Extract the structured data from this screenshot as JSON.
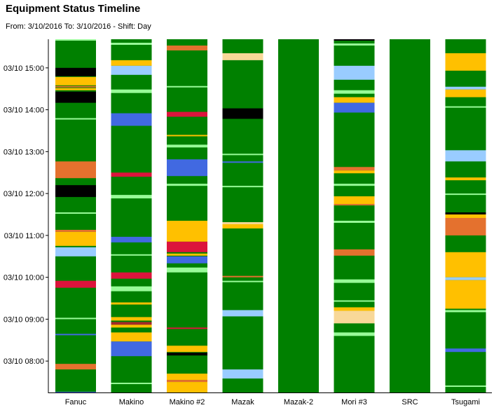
{
  "header": {
    "title": "Equipment Status Timeline",
    "subtitle": "From: 3/10/2016 To: 3/10/2016 - Shift: Day"
  },
  "colors": {
    "running": "#008000",
    "light_green": "#98FB98",
    "gold": "#FFC000",
    "light_blue": "#99CCFF",
    "blue": "#4169E1",
    "orange": "#E4712E",
    "red": "#DC143C",
    "black": "#000000",
    "tan": "#F8D898",
    "dark_red": "#A52A2A",
    "axis": "#000000"
  },
  "chart_data": {
    "type": "timeline",
    "time_axis": {
      "start": "07:15",
      "end": "15:41",
      "tick_labels": [
        "03/10 08:00",
        "03/10 09:00",
        "03/10 10:00",
        "03/10 11:00",
        "03/10 12:00",
        "03/10 13:00",
        "03/10 14:00",
        "03/10 15:00"
      ],
      "tick_times": [
        "08:00",
        "09:00",
        "10:00",
        "11:00",
        "12:00",
        "13:00",
        "14:00",
        "15:00"
      ]
    },
    "base_status": "running",
    "machines": [
      {
        "name": "Fanuc",
        "events": [
          [
            "15:41",
            "15:40",
            "light_green"
          ],
          [
            "15:00",
            "14:48",
            "black"
          ],
          [
            "14:47",
            "14:35",
            "gold"
          ],
          [
            "14:34",
            "14:32",
            "orange"
          ],
          [
            "14:31",
            "14:28",
            "gold"
          ],
          [
            "14:26",
            "14:10",
            "black"
          ],
          [
            "13:48",
            "13:46",
            "light_green"
          ],
          [
            "12:46",
            "12:22",
            "orange"
          ],
          [
            "12:12",
            "11:55",
            "black"
          ],
          [
            "11:33",
            "11:31",
            "light_green"
          ],
          [
            "11:08",
            "11:05",
            "orange"
          ],
          [
            "11:05",
            "10:45",
            "gold"
          ],
          [
            "10:43",
            "10:30",
            "light_blue"
          ],
          [
            "09:55",
            "09:45",
            "red"
          ],
          [
            "09:02",
            "09:01",
            "light_green"
          ],
          [
            "08:39",
            "08:38",
            "blue"
          ],
          [
            "07:56",
            "07:48",
            "orange"
          ],
          [
            "07:16",
            "07:15",
            "blue"
          ]
        ]
      },
      {
        "name": "Makino",
        "events": [
          [
            "15:36",
            "15:33",
            "light_green"
          ],
          [
            "15:11",
            "15:03",
            "gold"
          ],
          [
            "15:03",
            "14:50",
            "light_blue"
          ],
          [
            "14:29",
            "14:24",
            "light_green"
          ],
          [
            "13:55",
            "13:37",
            "blue"
          ],
          [
            "12:30",
            "12:24",
            "red"
          ],
          [
            "11:58",
            "11:53",
            "light_green"
          ],
          [
            "10:58",
            "10:50",
            "blue"
          ],
          [
            "10:33",
            "10:31",
            "light_green"
          ],
          [
            "10:07",
            "09:58",
            "red"
          ],
          [
            "09:47",
            "09:40",
            "light_green"
          ],
          [
            "09:24",
            "09:21",
            "gold"
          ],
          [
            "09:03",
            "08:58",
            "gold"
          ],
          [
            "08:56",
            "08:52",
            "dark_red"
          ],
          [
            "08:52",
            "08:48",
            "gold"
          ],
          [
            "08:41",
            "08:28",
            "gold"
          ],
          [
            "08:28",
            "08:07",
            "blue"
          ],
          [
            "07:29",
            "07:27",
            "light_green"
          ]
        ]
      },
      {
        "name": "Makino #2",
        "events": [
          [
            "15:32",
            "15:25",
            "orange"
          ],
          [
            "14:34",
            "14:32",
            "light_green"
          ],
          [
            "13:57",
            "13:50",
            "red"
          ],
          [
            "13:24",
            "13:22",
            "gold"
          ],
          [
            "13:10",
            "13:06",
            "light_green"
          ],
          [
            "12:49",
            "12:25",
            "blue"
          ],
          [
            "12:14",
            "12:11",
            "light_green"
          ],
          [
            "11:21",
            "10:51",
            "gold"
          ],
          [
            "10:51",
            "10:36",
            "red"
          ],
          [
            "10:34",
            "10:31",
            "gold"
          ],
          [
            "10:30",
            "10:20",
            "blue"
          ],
          [
            "10:14",
            "10:07",
            "light_green"
          ],
          [
            "08:48",
            "08:47",
            "red"
          ],
          [
            "08:22",
            "08:13",
            "gold"
          ],
          [
            "08:12",
            "08:08",
            "black"
          ],
          [
            "07:42",
            "07:33",
            "gold"
          ],
          [
            "07:33",
            "07:30",
            "orange"
          ],
          [
            "07:30",
            "07:15",
            "gold"
          ]
        ]
      },
      {
        "name": "Mazak",
        "events": [
          [
            "15:21",
            "15:11",
            "tan"
          ],
          [
            "14:02",
            "13:47",
            "black"
          ],
          [
            "12:57",
            "12:55",
            "light_green"
          ],
          [
            "12:46",
            "12:44",
            "blue"
          ],
          [
            "12:11",
            "12:09",
            "light_green"
          ],
          [
            "11:19",
            "11:16",
            "tan"
          ],
          [
            "11:16",
            "11:10",
            "gold"
          ],
          [
            "10:02",
            "10:00",
            "orange"
          ],
          [
            "09:55",
            "09:53",
            "light_green"
          ],
          [
            "09:13",
            "09:04",
            "light_blue"
          ],
          [
            "07:48",
            "07:35",
            "light_blue"
          ]
        ]
      },
      {
        "name": "Mazak-2",
        "events": []
      },
      {
        "name": "Mori #3",
        "events": [
          [
            "15:41",
            "15:40",
            "black"
          ],
          [
            "15:35",
            "15:32",
            "light_green"
          ],
          [
            "15:03",
            "14:43",
            "light_blue"
          ],
          [
            "14:28",
            "14:23",
            "light_green"
          ],
          [
            "14:18",
            "14:10",
            "gold"
          ],
          [
            "14:10",
            "13:56",
            "blue"
          ],
          [
            "12:38",
            "12:33",
            "orange"
          ],
          [
            "12:33",
            "12:29",
            "gold"
          ],
          [
            "12:14",
            "12:11",
            "light_green"
          ],
          [
            "11:56",
            "11:45",
            "gold"
          ],
          [
            "11:45",
            "11:43",
            "orange"
          ],
          [
            "11:21",
            "11:18",
            "light_green"
          ],
          [
            "10:40",
            "10:31",
            "orange"
          ],
          [
            "09:57",
            "09:52",
            "light_green"
          ],
          [
            "09:27",
            "09:25",
            "light_green"
          ],
          [
            "09:17",
            "09:12",
            "gold"
          ],
          [
            "09:12",
            "08:54",
            "tan"
          ],
          [
            "08:41",
            "08:36",
            "light_green"
          ]
        ]
      },
      {
        "name": "SRC",
        "events": []
      },
      {
        "name": "Tsugami",
        "events": [
          [
            "15:21",
            "14:56",
            "gold"
          ],
          [
            "14:33",
            "14:29",
            "light_blue"
          ],
          [
            "14:29",
            "14:18",
            "gold"
          ],
          [
            "14:05",
            "14:03",
            "light_green"
          ],
          [
            "13:02",
            "12:46",
            "light_blue"
          ],
          [
            "12:23",
            "12:19",
            "gold"
          ],
          [
            "12:00",
            "11:58",
            "light_green"
          ],
          [
            "11:33",
            "11:30",
            "black"
          ],
          [
            "11:30",
            "11:25",
            "gold"
          ],
          [
            "11:25",
            "11:00",
            "orange"
          ],
          [
            "10:36",
            "10:00",
            "gold"
          ],
          [
            "10:00",
            "09:56",
            "light_blue"
          ],
          [
            "09:56",
            "09:15",
            "gold"
          ],
          [
            "09:13",
            "09:10",
            "light_green"
          ],
          [
            "08:18",
            "08:13",
            "blue"
          ],
          [
            "07:25",
            "07:23",
            "light_green"
          ]
        ]
      }
    ]
  }
}
